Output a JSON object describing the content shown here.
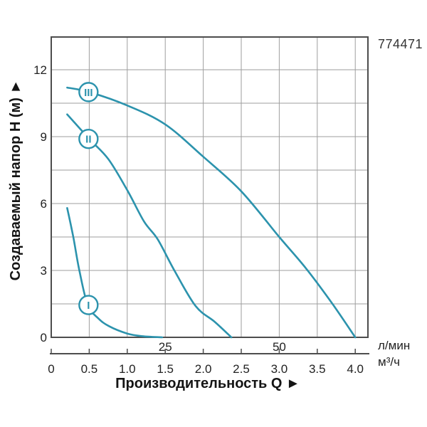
{
  "product_code": "774471",
  "chart_data": {
    "type": "line",
    "title": "",
    "xlabel": "Производительность Q ►",
    "ylabel": "Создаваемый напор H (м) ►",
    "xlim": [
      0,
      4.17
    ],
    "ylim": [
      0,
      13.5
    ],
    "grid": {
      "on": true,
      "x_step_m3h": 0.5,
      "y_step_m": 1.5
    },
    "legend_position": "markers-on-curves",
    "y_axis": {
      "unit": "м",
      "ticks": [
        0,
        3,
        6,
        9,
        12
      ]
    },
    "x_axis_lmin": {
      "unit": "л/мин",
      "ticks": [
        {
          "label": "25",
          "m3h": 1.5
        },
        {
          "label": "50",
          "m3h": 3.0
        }
      ]
    },
    "x_axis_m3h": {
      "unit": "м³/ч",
      "ticks": [
        {
          "label": "0",
          "v": 0.0
        },
        {
          "label": "0.5",
          "v": 0.5
        },
        {
          "label": "1.0",
          "v": 1.0
        },
        {
          "label": "1.5",
          "v": 1.5
        },
        {
          "label": "2.0",
          "v": 2.0
        },
        {
          "label": "2.5",
          "v": 2.5
        },
        {
          "label": "3.0",
          "v": 3.0
        },
        {
          "label": "3.5",
          "v": 3.5
        },
        {
          "label": "4.0",
          "v": 4.0
        }
      ]
    },
    "series": [
      {
        "name": "I",
        "marker_point": [
          0.49,
          1.45
        ],
        "points": [
          [
            0.21,
            5.8
          ],
          [
            0.29,
            4.5
          ],
          [
            0.37,
            3.0
          ],
          [
            0.48,
            1.45
          ],
          [
            0.62,
            0.85
          ],
          [
            0.76,
            0.5
          ],
          [
            1.0,
            0.17
          ],
          [
            1.2,
            0.05
          ],
          [
            1.46,
            0
          ]
        ]
      },
      {
        "name": "II",
        "marker_point": [
          0.49,
          8.9
        ],
        "points": [
          [
            0.21,
            10.0
          ],
          [
            0.5,
            8.9
          ],
          [
            0.75,
            8.0
          ],
          [
            1.0,
            6.6
          ],
          [
            1.22,
            5.2
          ],
          [
            1.4,
            4.4
          ],
          [
            1.62,
            3.0
          ],
          [
            1.9,
            1.4
          ],
          [
            2.15,
            0.7
          ],
          [
            2.37,
            0
          ]
        ]
      },
      {
        "name": "III",
        "marker_point": [
          0.49,
          11.0
        ],
        "points": [
          [
            0.21,
            11.2
          ],
          [
            0.5,
            11.0
          ],
          [
            1.0,
            10.4
          ],
          [
            1.5,
            9.55
          ],
          [
            2.0,
            8.1
          ],
          [
            2.5,
            6.55
          ],
          [
            3.0,
            4.5
          ],
          [
            3.35,
            3.1
          ],
          [
            3.7,
            1.5
          ],
          [
            4.0,
            0
          ]
        ]
      }
    ],
    "colors": {
      "curve": "#2c93ad",
      "grid": "#9e9e9e",
      "border": "#4d4d4d",
      "tick_text": "#222222",
      "title_text": "#141414",
      "marker_fill": "#ffffff"
    }
  }
}
